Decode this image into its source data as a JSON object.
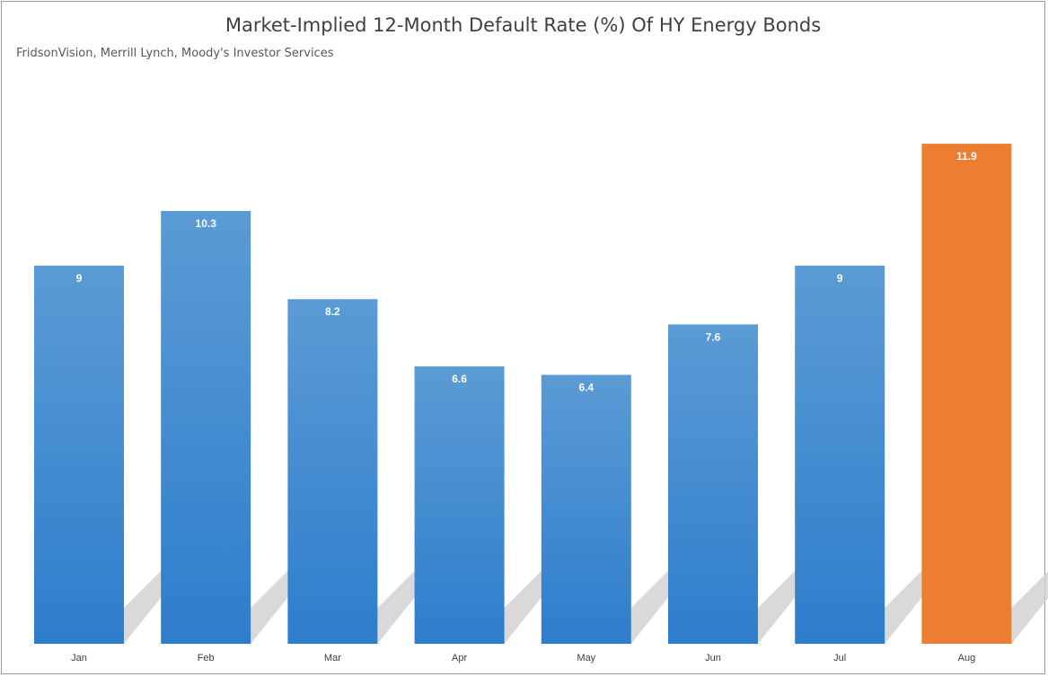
{
  "chart": {
    "title": "Market-Implied 12-Month Default Rate (%) Of HY Energy Bonds",
    "subtitle": "FridsonVision, Merrill Lynch, Moody's Investor Services"
  },
  "colors": {
    "bar_top": "#5b9bd5",
    "bar_bottom": "#2e7dcc",
    "highlight": "#ed7d31",
    "shadow": "#d0d0d0",
    "label": "#ffffff",
    "axis_text": "#404040"
  },
  "chart_data": {
    "type": "bar",
    "title": "Market-Implied 12-Month Default Rate (%) Of HY Energy Bonds",
    "subtitle": "FridsonVision, Merrill Lynch, Moody's Investor Services",
    "categories": [
      "Jan",
      "Feb",
      "Mar",
      "Apr",
      "May",
      "Jun",
      "Jul",
      "Aug"
    ],
    "values": [
      9,
      10.3,
      8.2,
      6.6,
      6.4,
      7.6,
      9,
      11.9
    ],
    "data_labels": [
      "9",
      "10.3",
      "8.2",
      "6.6",
      "6.4",
      "7.6",
      "9",
      "11.9"
    ],
    "highlighted_category": "Aug",
    "xlabel": "",
    "ylabel": "",
    "ylim": [
      0,
      12
    ],
    "grid": false,
    "legend": "none"
  }
}
